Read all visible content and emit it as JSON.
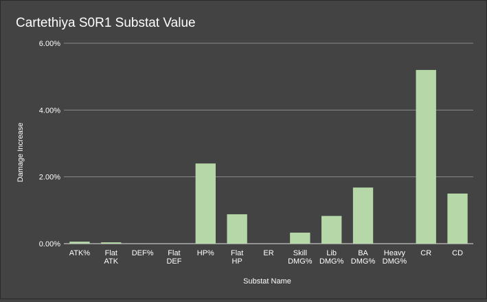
{
  "chart_data": {
    "type": "bar",
    "title": "Cartethiya S0R1 Substat Value",
    "xlabel": "Substat Name",
    "ylabel": "Damage Increase",
    "categories": [
      [
        "ATK%"
      ],
      [
        "Flat",
        "ATK"
      ],
      [
        "DEF%"
      ],
      [
        "Flat",
        "DEF"
      ],
      [
        "HP%"
      ],
      [
        "Flat",
        "HP"
      ],
      [
        "ER"
      ],
      [
        "Skill",
        "DMG%"
      ],
      [
        "Lib",
        "DMG%"
      ],
      [
        "BA",
        "DMG%"
      ],
      [
        "Heavy",
        "DMG%"
      ],
      [
        "CR"
      ],
      [
        "CD"
      ]
    ],
    "series": [
      {
        "values": [
          0.06,
          0.04,
          0.0,
          0.0,
          2.4,
          0.88,
          0.0,
          0.33,
          0.83,
          1.68,
          0.0,
          5.2,
          1.5
        ]
      }
    ],
    "ylim": [
      0,
      6
    ],
    "yticks": [
      0,
      2,
      4,
      6
    ],
    "ytick_labels": [
      "0.00%",
      "2.00%",
      "4.00%",
      "6.00%"
    ],
    "grid": true,
    "colors": {
      "background": "#434343",
      "bar": "#b6d7a8",
      "text": "#ffffff",
      "grid": "#8a8a8a",
      "axis": "#e0e0e0"
    }
  }
}
